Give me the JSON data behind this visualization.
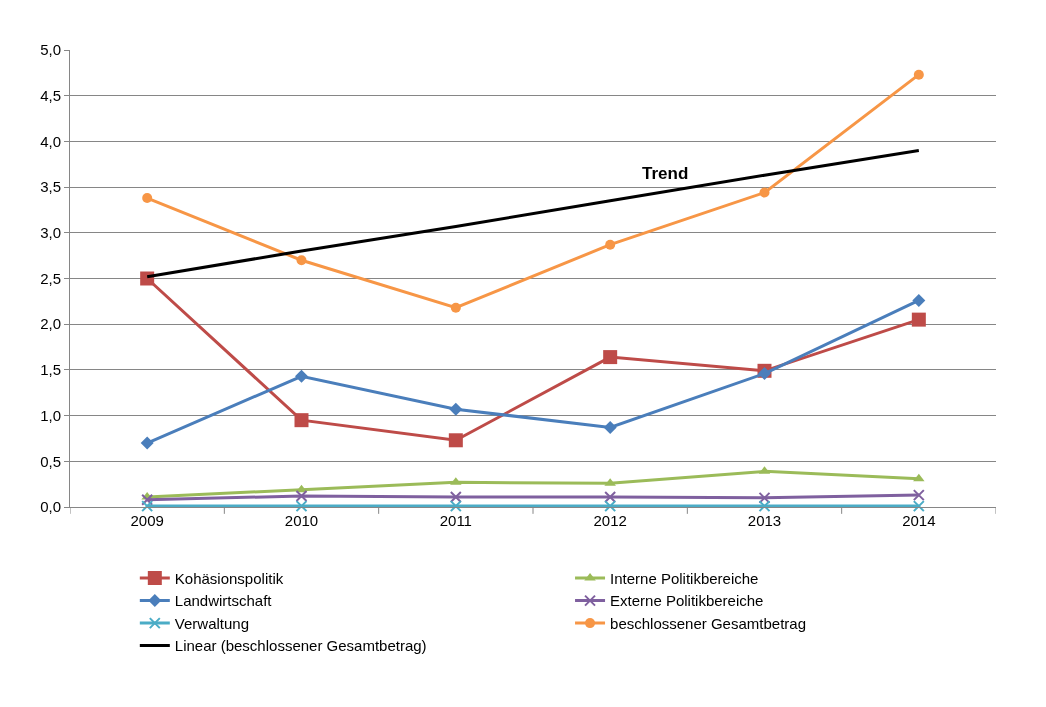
{
  "chart_data": {
    "type": "line",
    "categories": [
      "2009",
      "2010",
      "2011",
      "2012",
      "2013",
      "2014"
    ],
    "series": [
      {
        "name": "Kohäsionspolitik",
        "color": "#be4b48",
        "marker": "square",
        "values": [
          2.5,
          0.95,
          0.73,
          1.64,
          1.49,
          2.05
        ]
      },
      {
        "name": "Interne Politikbereiche",
        "color": "#9bbb59",
        "marker": "triangle",
        "values": [
          0.11,
          0.19,
          0.27,
          0.26,
          0.39,
          0.31
        ]
      },
      {
        "name": "Landwirtschaft",
        "color": "#4a7ebb",
        "marker": "diamond",
        "values": [
          0.7,
          1.43,
          1.07,
          0.87,
          1.46,
          2.26
        ]
      },
      {
        "name": "Externe Politikbereiche",
        "color": "#7f609f",
        "marker": "cross",
        "values": [
          0.08,
          0.12,
          0.11,
          0.11,
          0.1,
          0.13
        ]
      },
      {
        "name": "Verwaltung",
        "color": "#4bacc6",
        "marker": "cross",
        "values": [
          0.01,
          0.01,
          0.01,
          0.01,
          0.01,
          0.01
        ]
      },
      {
        "name": "beschlossener Gesamtbetrag",
        "color": "#f79646",
        "marker": "circle",
        "values": [
          3.38,
          2.7,
          2.18,
          2.87,
          3.44,
          4.73
        ]
      },
      {
        "name": "Linear (beschlossener Gesamtbetrag)",
        "color": "#000000",
        "marker": "none",
        "values": [
          2.52,
          2.8,
          3.07,
          3.35,
          3.63,
          3.9
        ]
      }
    ],
    "ylim": [
      0,
      5
    ],
    "yticks": [
      {
        "value": 0,
        "label": "0,0"
      },
      {
        "value": 0.5,
        "label": "0,5"
      },
      {
        "value": 1,
        "label": "1,0"
      },
      {
        "value": 1.5,
        "label": "1,5"
      },
      {
        "value": 2,
        "label": "2,0"
      },
      {
        "value": 2.5,
        "label": "2,5"
      },
      {
        "value": 3,
        "label": "3,0"
      },
      {
        "value": 3.5,
        "label": "3,5"
      },
      {
        "value": 4,
        "label": "4,0"
      },
      {
        "value": 4.5,
        "label": "4,5"
      },
      {
        "value": 5,
        "label": "5,0"
      }
    ],
    "annotations": [
      "Trend"
    ],
    "grid": "y",
    "legend": "bottom",
    "line_style": "solid"
  }
}
